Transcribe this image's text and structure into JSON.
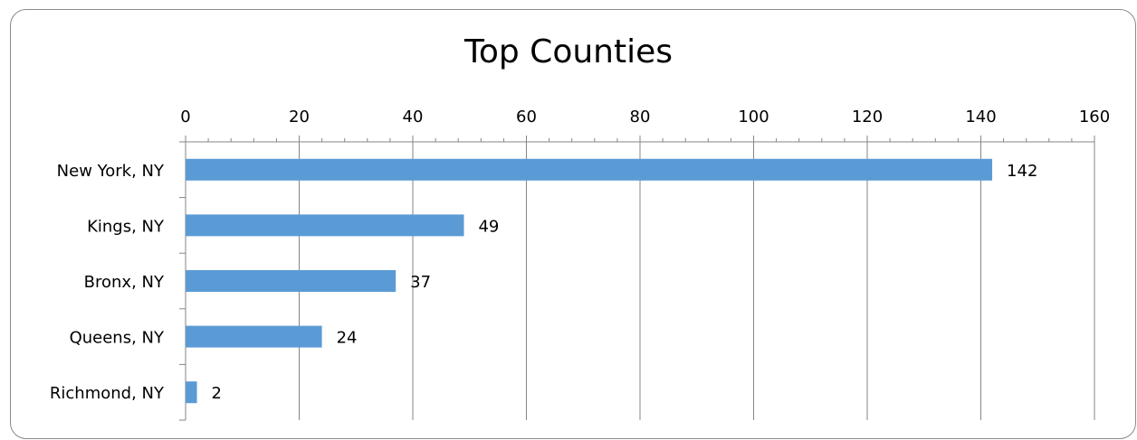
{
  "chart_data": {
    "type": "bar",
    "orientation": "horizontal",
    "title": "Top Counties",
    "categories": [
      "New York, NY",
      "Kings, NY",
      "Bronx, NY",
      "Queens, NY",
      "Richmond, NY"
    ],
    "values": [
      142,
      49,
      37,
      24,
      2
    ],
    "data_labels": [
      "142",
      "49",
      "37",
      "24",
      "2"
    ],
    "xlim": [
      0,
      160
    ],
    "x_ticks": [
      0,
      20,
      40,
      60,
      80,
      100,
      120,
      140,
      160
    ],
    "x_tick_labels": [
      "0",
      "20",
      "40",
      "60",
      "80",
      "100",
      "120",
      "140",
      "160"
    ],
    "x_axis_position": "top",
    "minor_ticks_per_major": 5,
    "grid": true,
    "legend": "none",
    "colors": {
      "bar": "#5b9bd5",
      "grid": "#868686",
      "axis": "#868686"
    }
  }
}
